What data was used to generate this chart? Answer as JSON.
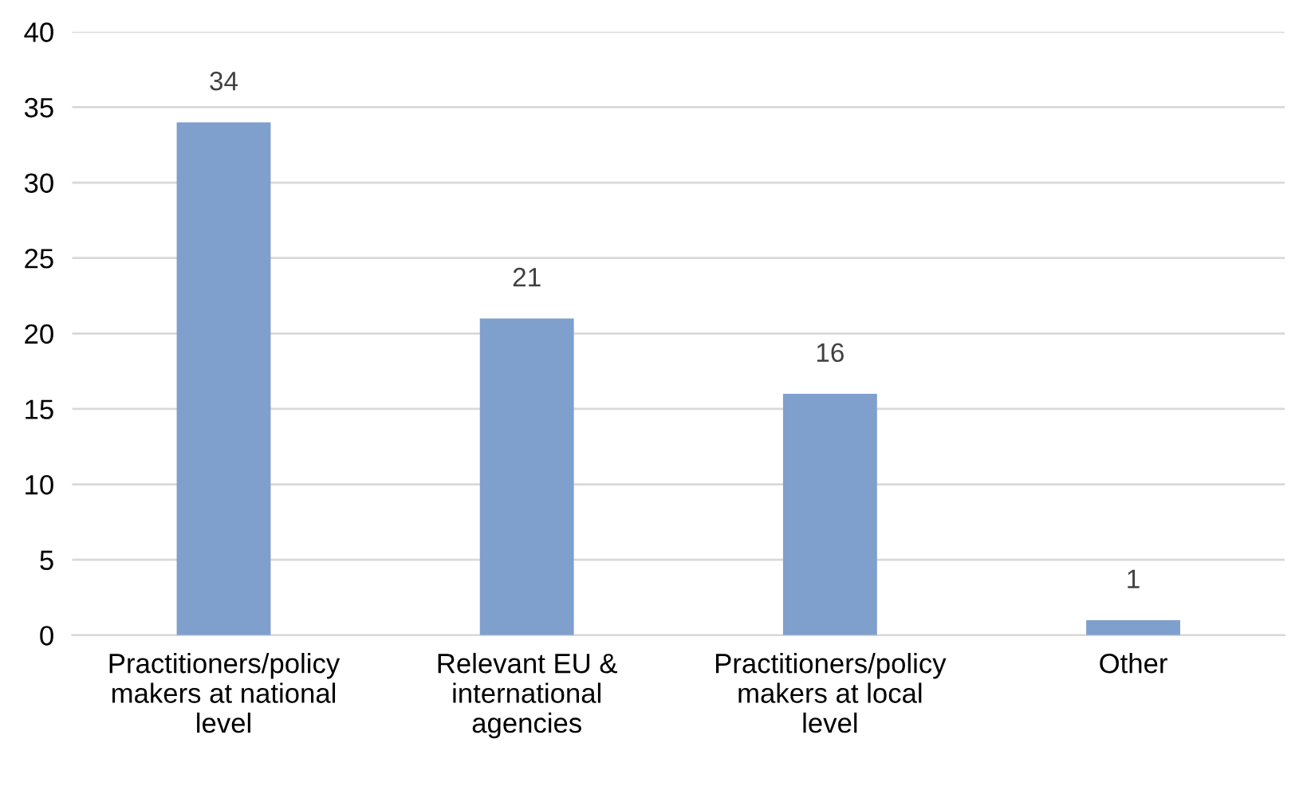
{
  "chart_data": {
    "type": "bar",
    "categories": [
      "Practitioners/policy\nmakers at national\nlevel",
      "Relevant EU &\ninternational\nagencies",
      "Practitioners/policy\nmakers at local\nlevel",
      "Other"
    ],
    "values": [
      34,
      21,
      16,
      1
    ],
    "color": "#7f9fcc",
    "ylim": [
      0,
      40
    ],
    "yticks": [
      0,
      5,
      10,
      15,
      20,
      25,
      30,
      35,
      40
    ],
    "grid": "y",
    "data_labels": true
  }
}
